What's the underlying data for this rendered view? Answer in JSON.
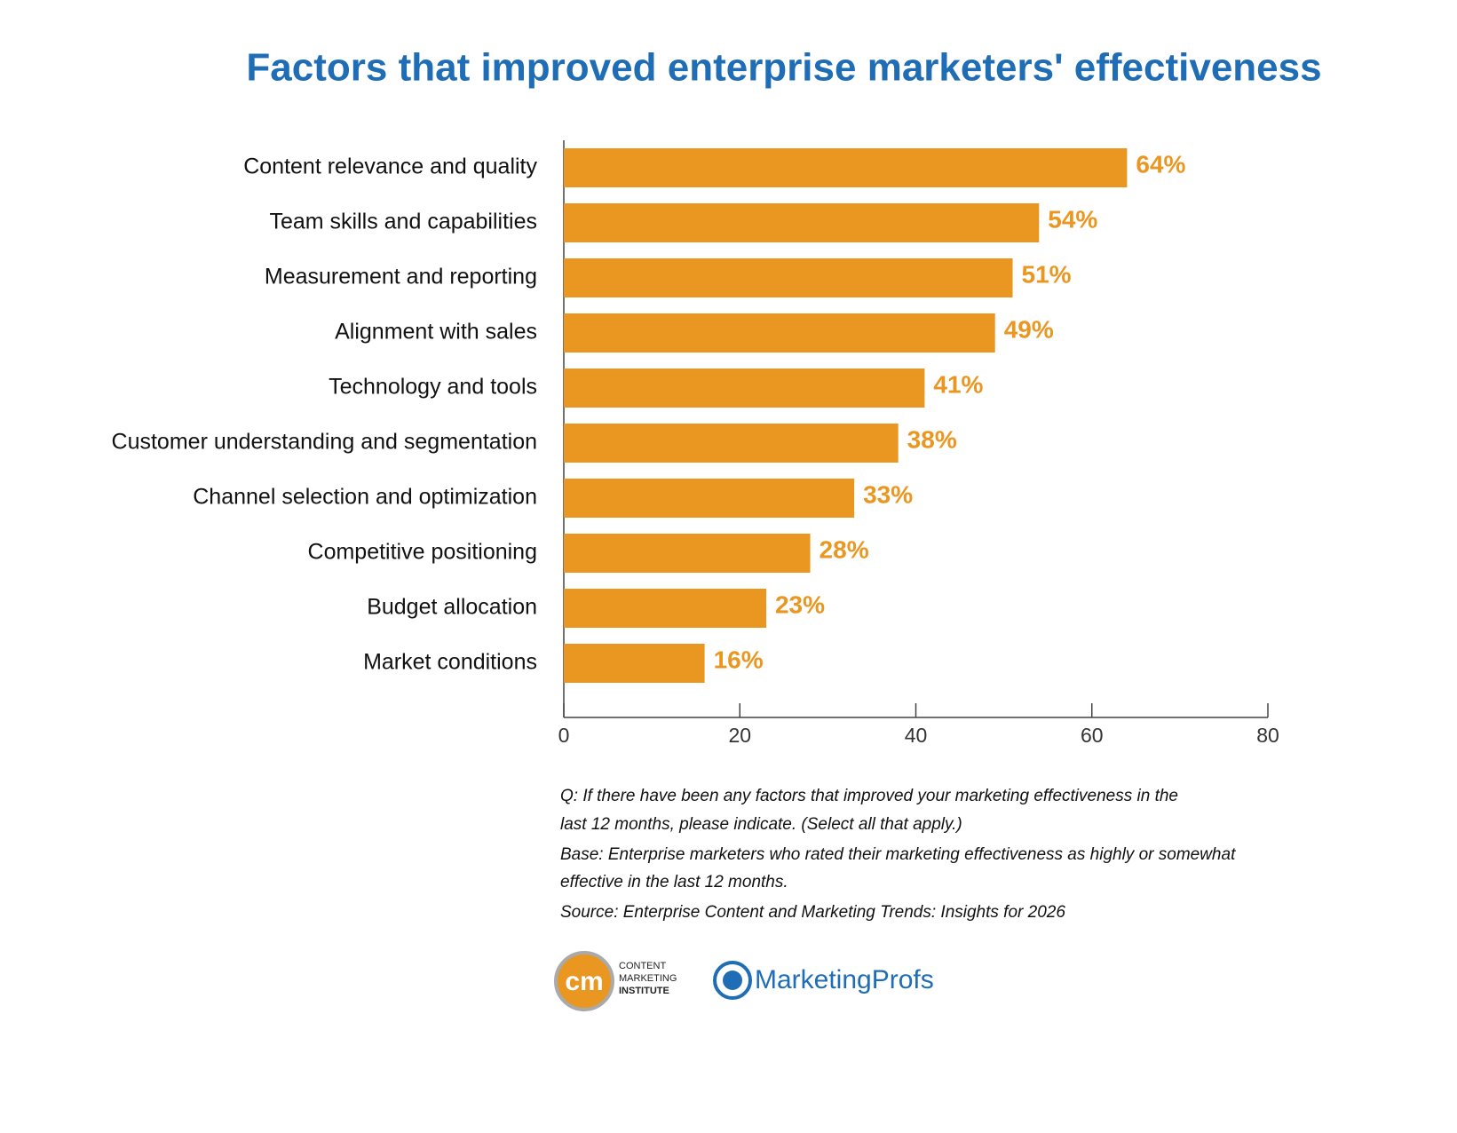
{
  "chart_data": {
    "type": "bar",
    "horizontal": true,
    "title": "Factors that improved enterprise marketers' effectiveness",
    "categories": [
      "Content relevance and quality",
      "Team skills and capabilities",
      "Measurement and reporting",
      "Alignment with sales",
      "Technology and tools",
      "Customer understanding and segmentation",
      "Channel selection and optimization",
      "Competitive positioning",
      "Budget allocation",
      "Market conditions"
    ],
    "values": [
      64,
      54,
      51,
      49,
      41,
      38,
      33,
      28,
      23,
      16
    ],
    "value_labels": [
      "64%",
      "54%",
      "51%",
      "49%",
      "41%",
      "38%",
      "33%",
      "28%",
      "23%",
      "16%"
    ],
    "color": "#e99721",
    "xlim": [
      0,
      80
    ],
    "xticks": [
      0,
      20,
      40,
      60,
      80
    ],
    "grid": false,
    "notes": [
      "Q: If there have been any factors that improved your marketing effectiveness in the",
      "last 12 months, please indicate. (Select all that apply.)",
      "Base: Enterprise marketers who rated their marketing effectiveness as highly or somewhat",
      "effective in the last 12 months.",
      "Source: Enterprise Content and Marketing Trends: Insights for 2026"
    ],
    "logos": {
      "cmi_mark": "cm",
      "cmi_text": [
        "CONTENT",
        "MARKETING",
        "INSTITUTE"
      ],
      "mp": "MarketingProfs"
    }
  }
}
